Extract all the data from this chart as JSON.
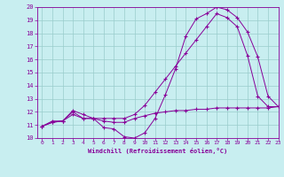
{
  "xlabel": "Windchill (Refroidissement éolien,°C)",
  "xlim": [
    -0.5,
    23
  ],
  "ylim": [
    10,
    20
  ],
  "xticks": [
    0,
    1,
    2,
    3,
    4,
    5,
    6,
    7,
    8,
    9,
    10,
    11,
    12,
    13,
    14,
    15,
    16,
    17,
    18,
    19,
    20,
    21,
    22,
    23
  ],
  "yticks": [
    10,
    11,
    12,
    13,
    14,
    15,
    16,
    17,
    18,
    19,
    20
  ],
  "bg_color": "#c8eef0",
  "line_color": "#880099",
  "grid_color": "#99cccc",
  "curve1_x": [
    0,
    1,
    2,
    3,
    4,
    5,
    6,
    7,
    8,
    9,
    10,
    11,
    12,
    13,
    14,
    15,
    16,
    17,
    18,
    19,
    20,
    21,
    22,
    23
  ],
  "curve1_y": [
    10.9,
    11.3,
    11.3,
    12.0,
    11.5,
    11.5,
    10.8,
    10.7,
    10.1,
    10.0,
    10.4,
    11.5,
    13.3,
    15.3,
    17.8,
    19.1,
    19.5,
    20.0,
    19.8,
    19.2,
    18.1,
    16.2,
    13.2,
    12.4
  ],
  "curve2_x": [
    0,
    1,
    2,
    3,
    4,
    5,
    6,
    7,
    8,
    9,
    10,
    11,
    12,
    13,
    14,
    15,
    16,
    17,
    18,
    19,
    20,
    21,
    22,
    23
  ],
  "curve2_y": [
    10.9,
    11.2,
    11.3,
    12.1,
    11.8,
    11.5,
    11.3,
    11.2,
    11.2,
    11.5,
    11.7,
    11.9,
    12.0,
    12.1,
    12.1,
    12.2,
    12.2,
    12.3,
    12.3,
    12.3,
    12.3,
    12.3,
    12.3,
    12.4
  ],
  "curve3_x": [
    0,
    1,
    2,
    3,
    4,
    5,
    6,
    7,
    8,
    9,
    10,
    11,
    12,
    13,
    14,
    15,
    16,
    17,
    18,
    19,
    20,
    21,
    22,
    23
  ],
  "curve3_y": [
    10.9,
    11.2,
    11.3,
    11.8,
    11.5,
    11.5,
    11.5,
    11.5,
    11.5,
    11.8,
    12.5,
    13.5,
    14.5,
    15.5,
    16.5,
    17.5,
    18.5,
    19.5,
    19.2,
    18.5,
    16.3,
    13.2,
    12.4,
    12.4
  ]
}
